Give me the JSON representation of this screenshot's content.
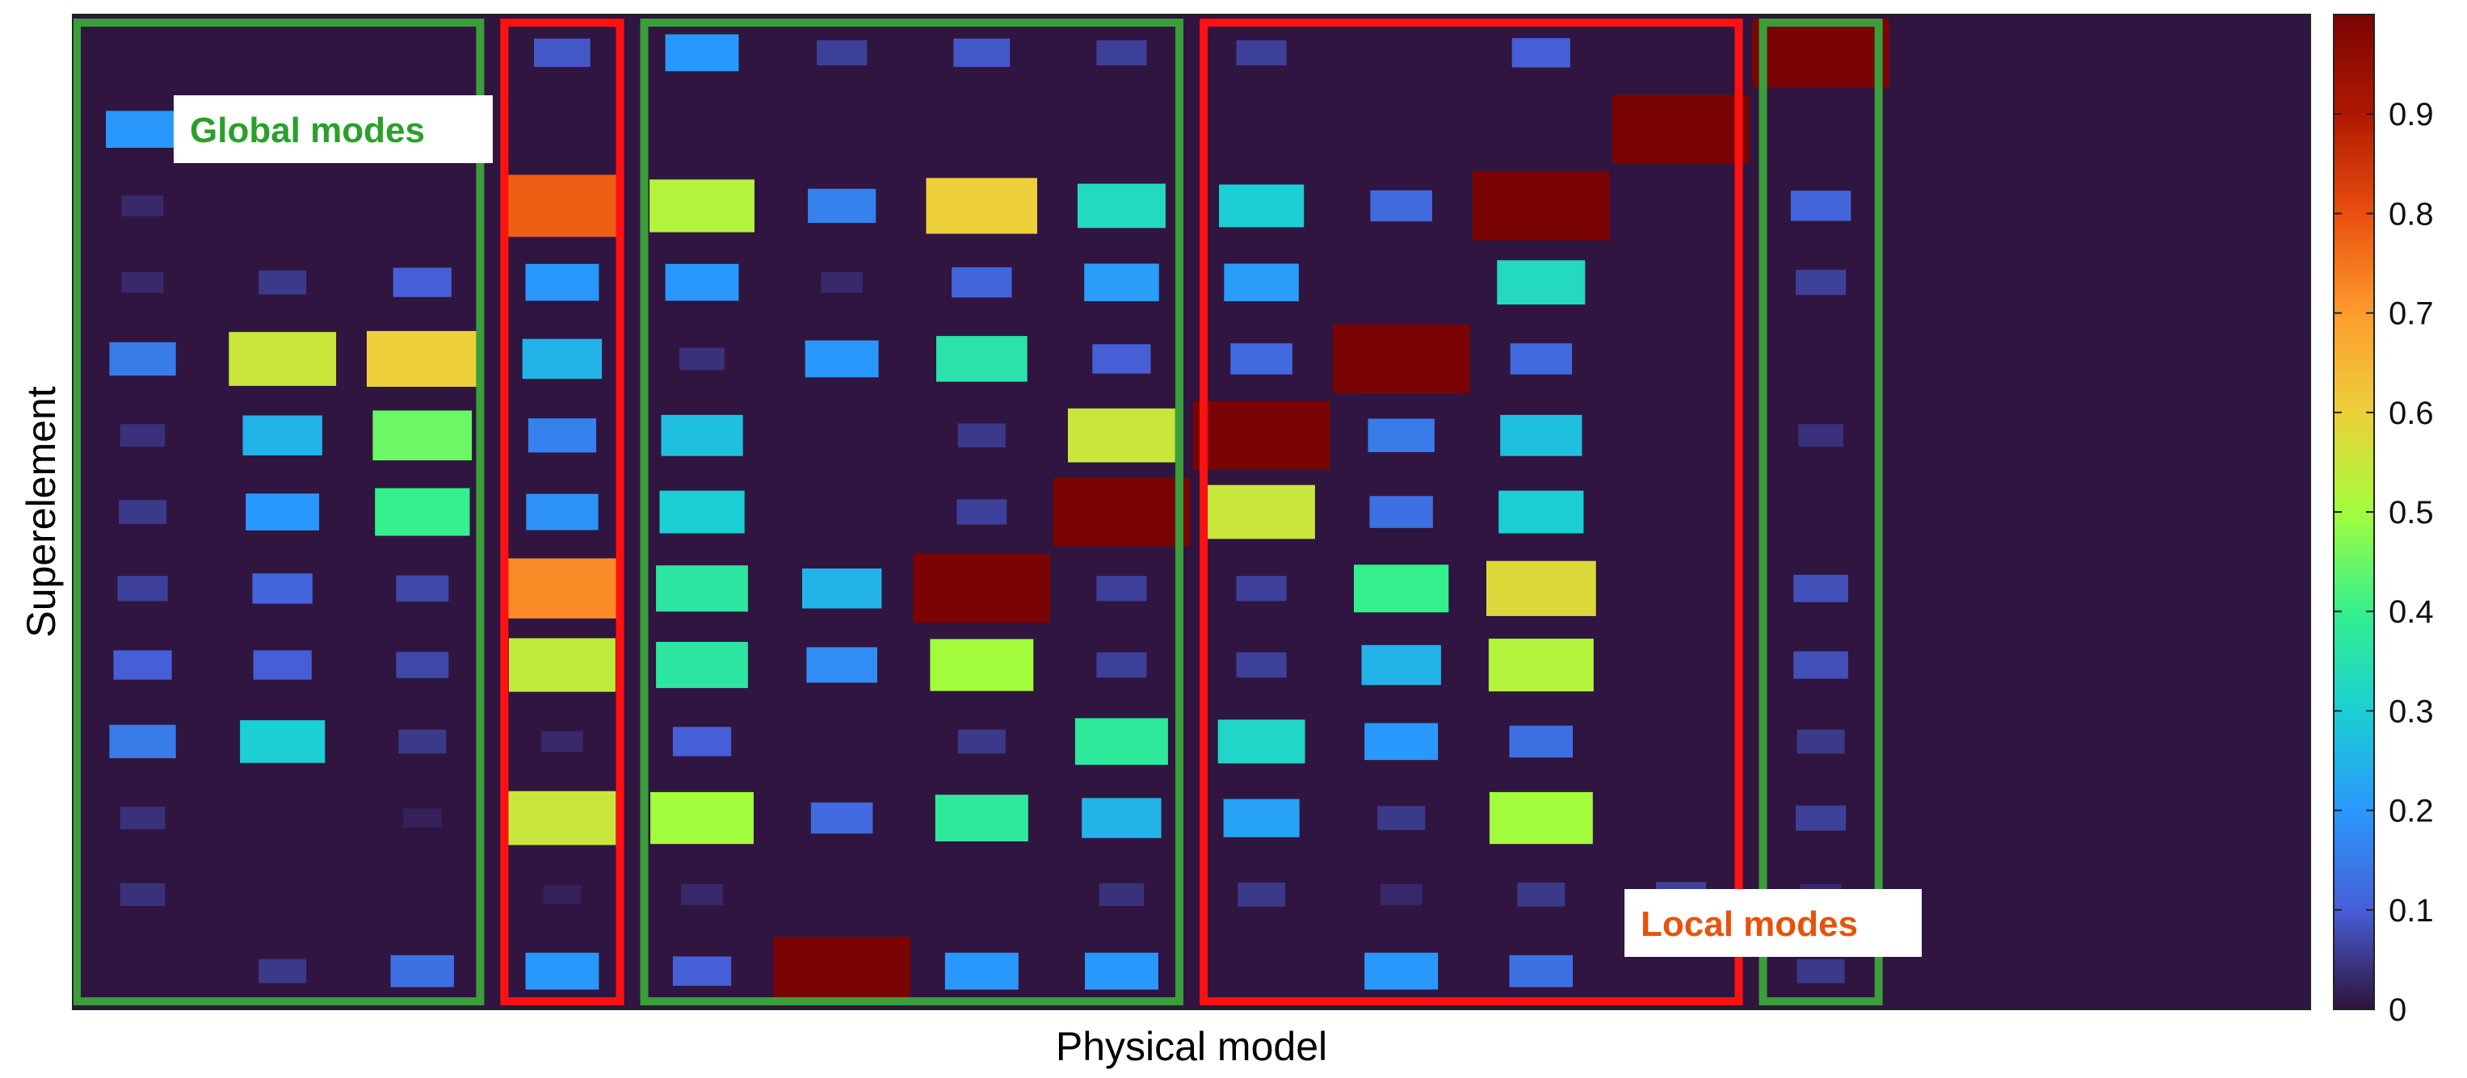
{
  "chart_data": {
    "type": "heatmap",
    "title": "",
    "xlabel": "Physical model",
    "ylabel": "Superelement",
    "n_columns": 16,
    "n_rows": 13,
    "value_range": [
      0,
      1
    ],
    "colorbar": {
      "ticks": [
        0,
        0.1,
        0.2,
        0.3,
        0.4,
        0.5,
        0.6,
        0.7,
        0.8,
        0.9
      ],
      "tick_labels": [
        "0",
        "0.1",
        "0.2",
        "0.3",
        "0.4",
        "0.5",
        "0.6",
        "0.7",
        "0.8",
        "0.9"
      ],
      "colormap": "turbo"
    },
    "cells": [
      [
        0,
        3,
        0.09
      ],
      [
        0,
        4,
        0.2
      ],
      [
        0,
        5,
        0.06
      ],
      [
        0,
        6,
        0.09
      ],
      [
        0,
        7,
        0.06
      ],
      [
        0,
        8,
        0.06
      ],
      [
        0,
        10,
        0.1
      ],
      [
        0,
        12,
        1.0
      ],
      [
        1,
        0,
        0.2
      ],
      [
        1,
        2,
        0.04
      ],
      [
        1,
        11,
        1.0
      ],
      [
        2,
        0,
        0.03
      ],
      [
        2,
        3,
        0.78
      ],
      [
        2,
        4,
        0.52
      ],
      [
        2,
        5,
        0.16
      ],
      [
        2,
        6,
        0.6
      ],
      [
        2,
        7,
        0.33
      ],
      [
        2,
        8,
        0.3
      ],
      [
        2,
        9,
        0.12
      ],
      [
        2,
        10,
        1.0
      ],
      [
        2,
        12,
        0.11
      ],
      [
        3,
        0,
        0.03
      ],
      [
        3,
        1,
        0.05
      ],
      [
        3,
        2,
        0.1
      ],
      [
        3,
        3,
        0.2
      ],
      [
        3,
        4,
        0.2
      ],
      [
        3,
        5,
        0.03
      ],
      [
        3,
        6,
        0.11
      ],
      [
        3,
        7,
        0.21
      ],
      [
        3,
        8,
        0.21
      ],
      [
        3,
        10,
        0.33
      ],
      [
        3,
        12,
        0.06
      ],
      [
        4,
        0,
        0.15
      ],
      [
        4,
        1,
        0.55
      ],
      [
        4,
        2,
        0.6
      ],
      [
        4,
        3,
        0.25
      ],
      [
        4,
        4,
        0.04
      ],
      [
        4,
        5,
        0.2
      ],
      [
        4,
        6,
        0.36
      ],
      [
        4,
        7,
        0.1
      ],
      [
        4,
        8,
        0.12
      ],
      [
        4,
        9,
        1.0
      ],
      [
        4,
        10,
        0.12
      ],
      [
        5,
        0,
        0.04
      ],
      [
        5,
        1,
        0.25
      ],
      [
        5,
        2,
        0.45
      ],
      [
        5,
        3,
        0.16
      ],
      [
        5,
        4,
        0.27
      ],
      [
        5,
        6,
        0.05
      ],
      [
        5,
        7,
        0.55
      ],
      [
        5,
        8,
        1.0
      ],
      [
        5,
        9,
        0.15
      ],
      [
        5,
        10,
        0.27
      ],
      [
        5,
        12,
        0.04
      ],
      [
        6,
        0,
        0.05
      ],
      [
        6,
        1,
        0.2
      ],
      [
        6,
        2,
        0.4
      ],
      [
        6,
        3,
        0.19
      ],
      [
        6,
        4,
        0.3
      ],
      [
        6,
        6,
        0.06
      ],
      [
        6,
        7,
        1.0
      ],
      [
        6,
        8,
        0.55
      ],
      [
        6,
        9,
        0.13
      ],
      [
        6,
        10,
        0.3
      ],
      [
        7,
        0,
        0.06
      ],
      [
        7,
        1,
        0.11
      ],
      [
        7,
        2,
        0.07
      ],
      [
        7,
        3,
        0.72
      ],
      [
        7,
        4,
        0.37
      ],
      [
        7,
        5,
        0.25
      ],
      [
        7,
        6,
        1.0
      ],
      [
        7,
        7,
        0.06
      ],
      [
        7,
        8,
        0.06
      ],
      [
        7,
        9,
        0.4
      ],
      [
        7,
        10,
        0.58
      ],
      [
        7,
        12,
        0.08
      ],
      [
        8,
        0,
        0.1
      ],
      [
        8,
        1,
        0.1
      ],
      [
        8,
        2,
        0.07
      ],
      [
        8,
        3,
        0.54
      ],
      [
        8,
        4,
        0.37
      ],
      [
        8,
        5,
        0.18
      ],
      [
        8,
        6,
        0.5
      ],
      [
        8,
        7,
        0.06
      ],
      [
        8,
        8,
        0.06
      ],
      [
        8,
        9,
        0.25
      ],
      [
        8,
        10,
        0.52
      ],
      [
        8,
        12,
        0.08
      ],
      [
        9,
        0,
        0.15
      ],
      [
        9,
        1,
        0.3
      ],
      [
        9,
        2,
        0.05
      ],
      [
        9,
        3,
        0.03
      ],
      [
        9,
        4,
        0.1
      ],
      [
        9,
        6,
        0.05
      ],
      [
        9,
        7,
        0.38
      ],
      [
        9,
        8,
        0.32
      ],
      [
        9,
        9,
        0.2
      ],
      [
        9,
        10,
        0.13
      ],
      [
        9,
        12,
        0.05
      ],
      [
        10,
        0,
        0.04
      ],
      [
        10,
        2,
        0.02
      ],
      [
        10,
        3,
        0.55
      ],
      [
        10,
        4,
        0.5
      ],
      [
        10,
        5,
        0.12
      ],
      [
        10,
        6,
        0.38
      ],
      [
        10,
        7,
        0.25
      ],
      [
        10,
        8,
        0.22
      ],
      [
        10,
        9,
        0.05
      ],
      [
        10,
        10,
        0.5
      ],
      [
        10,
        12,
        0.06
      ],
      [
        11,
        0,
        0.04
      ],
      [
        11,
        3,
        0.02
      ],
      [
        11,
        4,
        0.03
      ],
      [
        11,
        7,
        0.04
      ],
      [
        11,
        8,
        0.05
      ],
      [
        11,
        9,
        0.03
      ],
      [
        11,
        10,
        0.05
      ],
      [
        11,
        11,
        0.06
      ],
      [
        11,
        12,
        0.03
      ],
      [
        12,
        1,
        0.05
      ],
      [
        12,
        2,
        0.13
      ],
      [
        12,
        3,
        0.2
      ],
      [
        12,
        4,
        0.1
      ],
      [
        12,
        5,
        1.0
      ],
      [
        12,
        6,
        0.2
      ],
      [
        12,
        7,
        0.2
      ],
      [
        12,
        9,
        0.2
      ],
      [
        12,
        10,
        0.13
      ],
      [
        12,
        12,
        0.05
      ]
    ],
    "annotations": [
      {
        "text": "Global modes",
        "color": "#2aa02a"
      },
      {
        "text": "Local modes",
        "color": "#e8520c"
      }
    ],
    "groups": [
      {
        "kind": "global",
        "columns": [
          0,
          2
        ],
        "color": "#3a9e3a"
      },
      {
        "kind": "local",
        "columns": [
          3,
          3
        ],
        "color": "#ff1111"
      },
      {
        "kind": "global",
        "columns": [
          4,
          7
        ],
        "color": "#3a9e3a"
      },
      {
        "kind": "local",
        "columns": [
          8,
          11
        ],
        "color": "#ff1111"
      },
      {
        "kind": "global",
        "columns": [
          12,
          12
        ],
        "color": "#3a9e3a"
      }
    ],
    "background_color": "#2f1540"
  }
}
